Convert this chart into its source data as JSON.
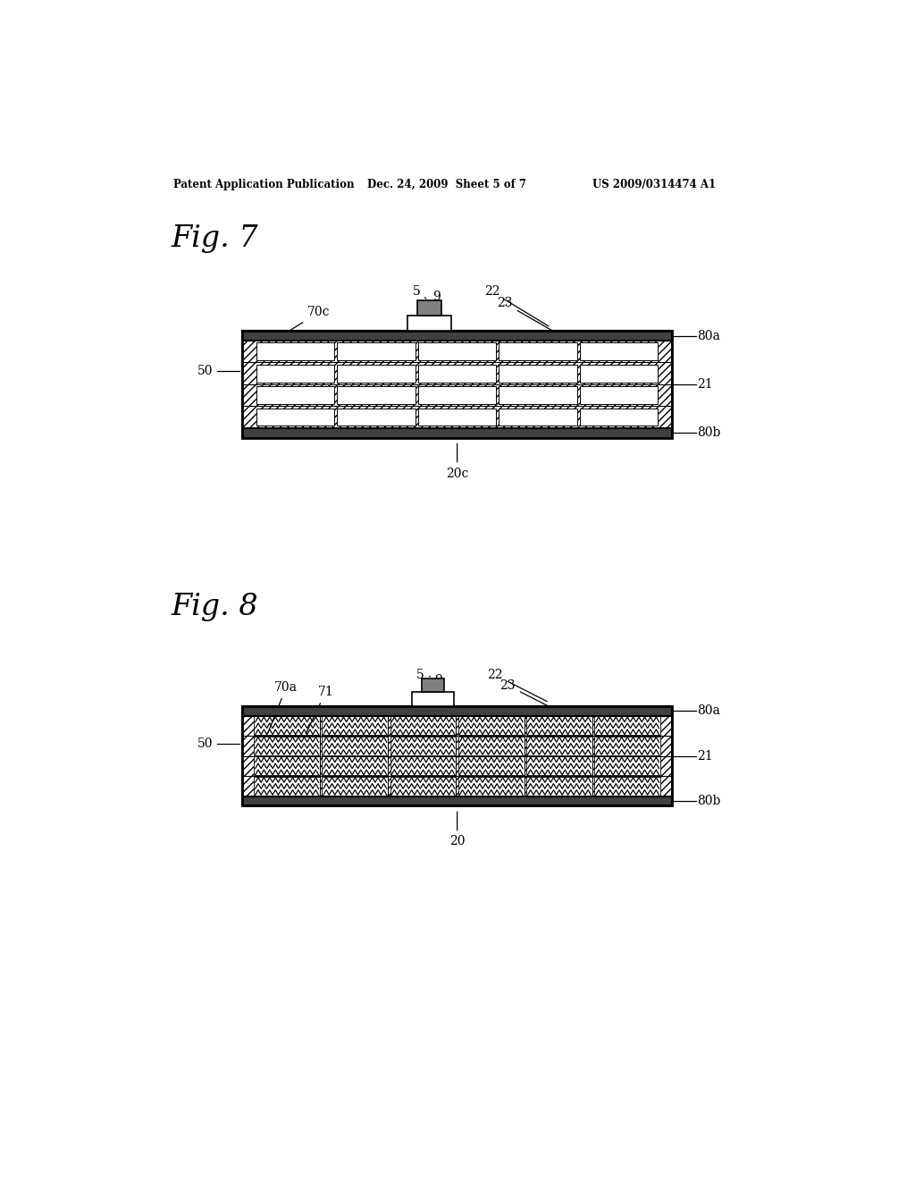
{
  "bg_color": "#ffffff",
  "header_text1": "Patent Application Publication",
  "header_text2": "Dec. 24, 2009  Sheet 5 of 7",
  "header_text3": "US 2009/0314474 A1",
  "fig7_label": "Fig. 7",
  "fig8_label": "Fig. 8"
}
